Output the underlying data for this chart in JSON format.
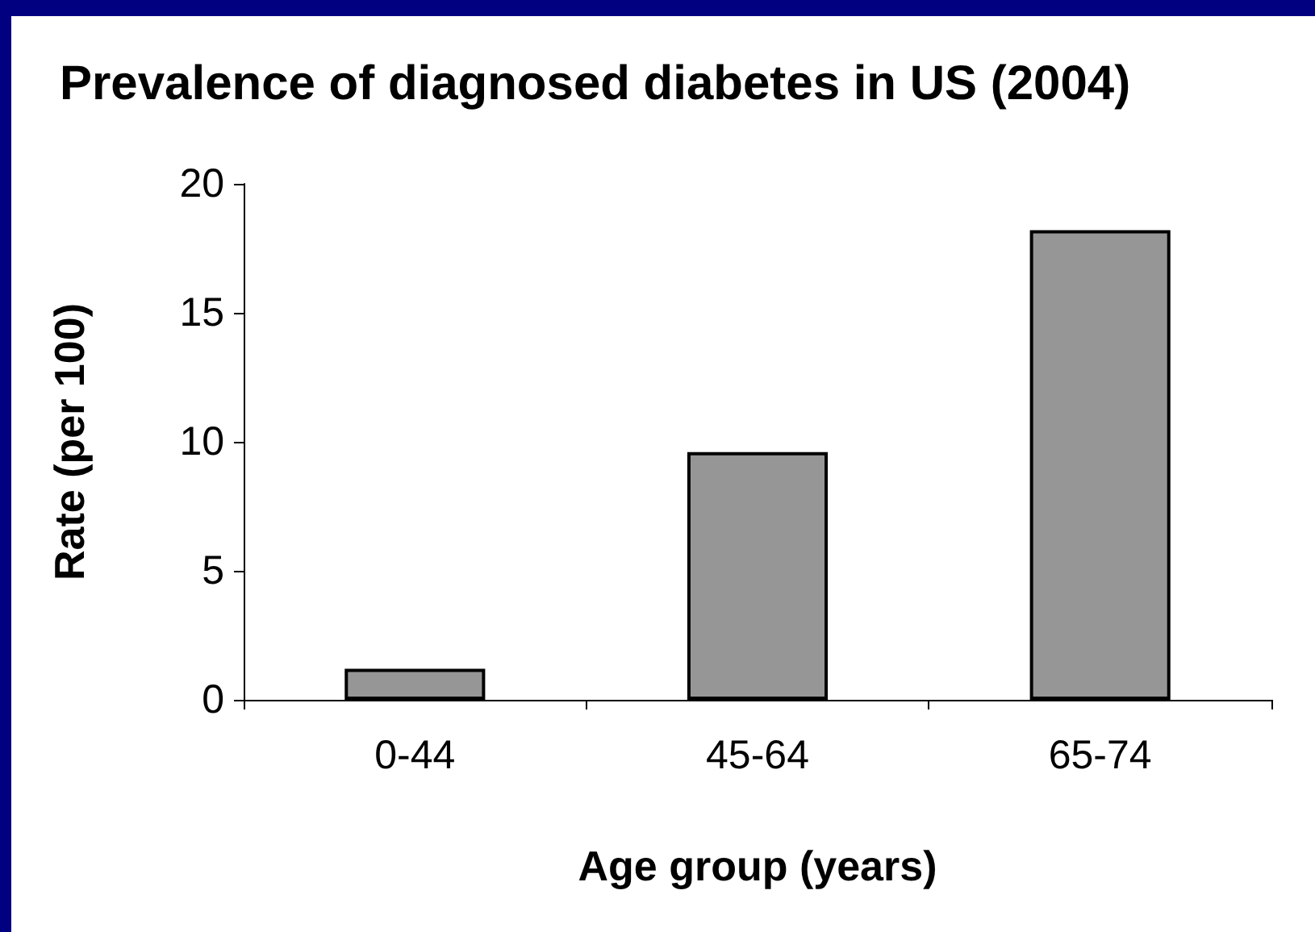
{
  "chart_data": {
    "type": "bar",
    "title": "Prevalence of diagnosed diabetes in US (2004)",
    "xlabel": "Age group (years)",
    "ylabel": "Rate (per 100)",
    "categories": [
      "0-44",
      "45-64",
      "65-74"
    ],
    "values": [
      1.2,
      9.6,
      18.2
    ],
    "color": "#969696",
    "ylim": [
      0,
      20
    ],
    "yticks": [
      0,
      5,
      10,
      15,
      20
    ]
  }
}
